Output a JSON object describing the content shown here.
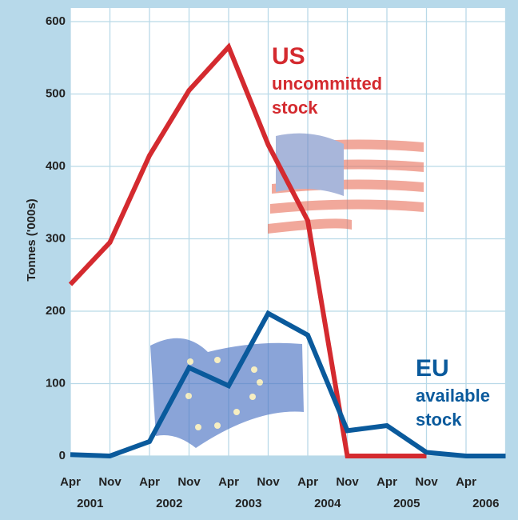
{
  "chart_data": {
    "type": "line",
    "y_label": "Tonnes ('000s)",
    "categories": [
      "Apr",
      "Nov",
      "Apr",
      "Nov",
      "Apr",
      "Nov",
      "Apr",
      "Nov",
      "Apr",
      "Nov",
      "Apr",
      null
    ],
    "years": [
      "2001",
      "2002",
      "2003",
      "2004",
      "2005",
      "2006"
    ],
    "series": [
      {
        "name": "US",
        "note": [
          "uncommitted",
          "stock"
        ],
        "color": "#d42a2f",
        "values": [
          237,
          295,
          415,
          505,
          565,
          430,
          325,
          0,
          0,
          0,
          null,
          null
        ]
      },
      {
        "name": "EU",
        "note": [
          "available",
          "stock"
        ],
        "color": "#0a5a9c",
        "values": [
          2,
          0,
          20,
          122,
          97,
          197,
          167,
          35,
          42,
          5,
          0,
          0
        ]
      }
    ],
    "ylim": [
      0,
      600
    ],
    "yticks": [
      0,
      100,
      200,
      300,
      400,
      500,
      600
    ],
    "grid": true
  }
}
